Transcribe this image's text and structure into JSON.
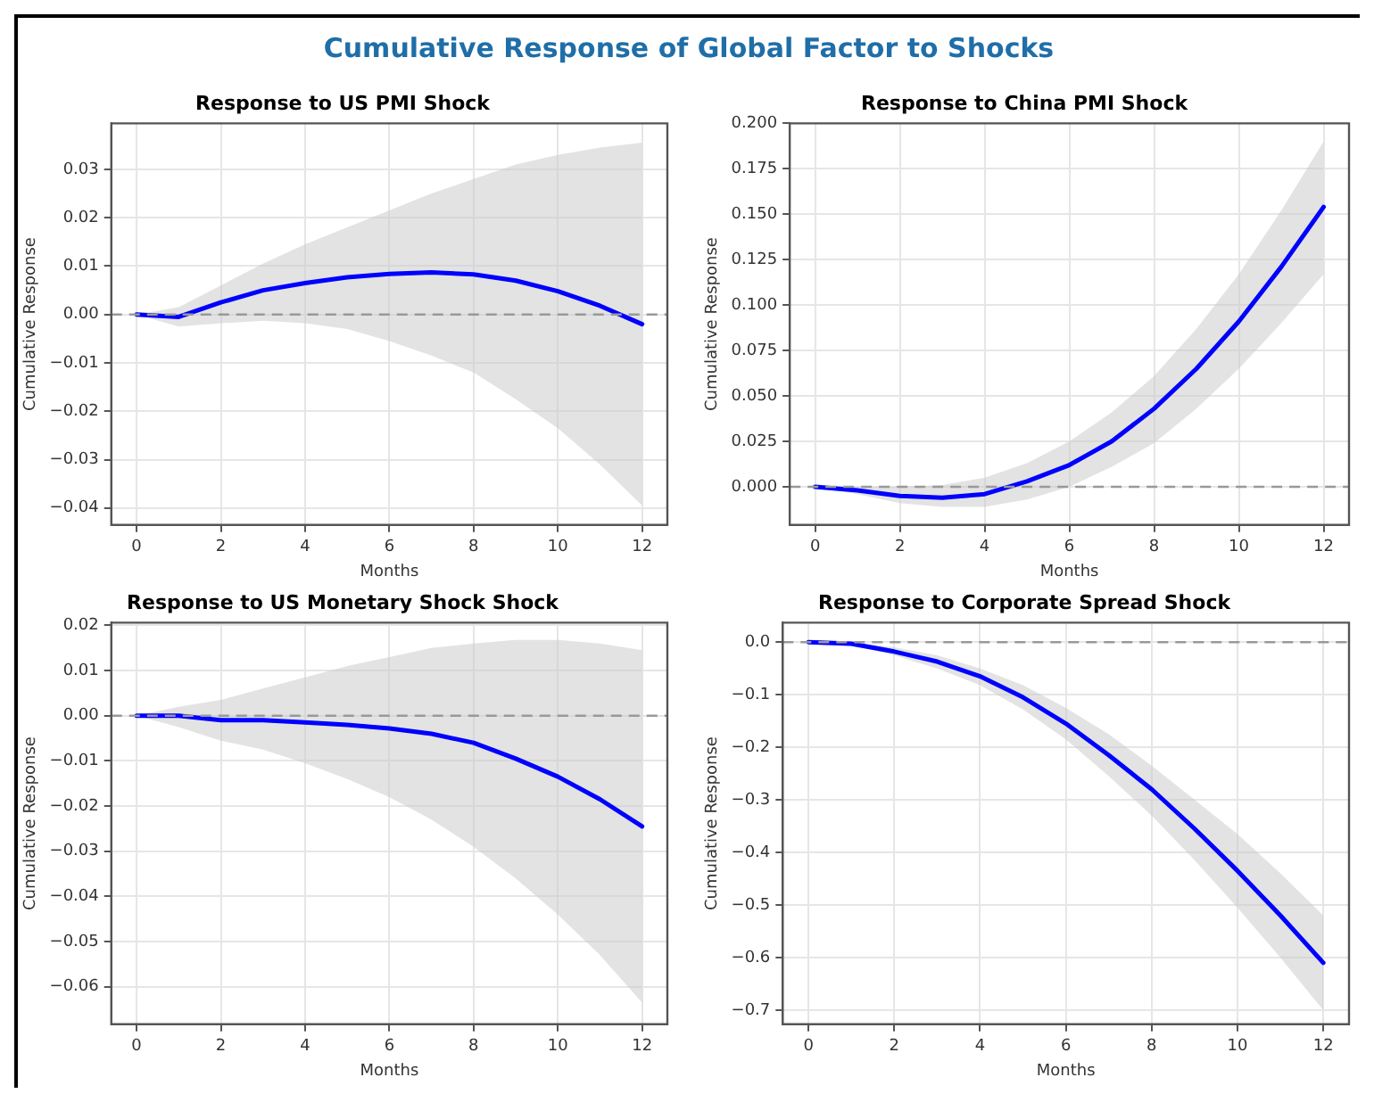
{
  "chart_data": [
    {
      "type": "line",
      "title": "Response to US PMI Shock",
      "annotations": [
        "Cumulative Response of Global Factor to Shocks"
      ],
      "xlabel": "Months",
      "ylabel": "Cumulative Response",
      "x": [
        0,
        1,
        2,
        3,
        4,
        5,
        6,
        7,
        8,
        9,
        10,
        11,
        12
      ],
      "series": [
        {
          "color": "#0000ff",
          "values": [
            0,
            -0.0005,
            0.0025,
            0.005,
            0.0065,
            0.0077,
            0.0084,
            0.0087,
            0.0083,
            0.007,
            0.0048,
            0.0018,
            -0.002
          ],
          "lower": [
            0,
            -0.0025,
            -0.0018,
            -0.0013,
            -0.0018,
            -0.003,
            -0.0055,
            -0.0085,
            -0.012,
            -0.0175,
            -0.0235,
            -0.031,
            -0.0395
          ],
          "upper": [
            0,
            0.0015,
            0.006,
            0.0105,
            0.0145,
            0.018,
            0.0215,
            0.025,
            0.028,
            0.031,
            0.033,
            0.0345,
            0.0355
          ]
        }
      ],
      "ref_lines": [
        {
          "axis": "y",
          "value": 0,
          "color": "#999999",
          "line_style": "dashed"
        }
      ],
      "xlim": [
        -0.6,
        12.6
      ],
      "xticks": [
        0,
        2,
        4,
        6,
        8,
        10,
        12
      ],
      "ylim": [
        -0.0435,
        0.0395
      ],
      "yticks": [
        {
          "value": -0.04,
          "label": "−0.04"
        },
        {
          "value": -0.03,
          "label": "−0.03"
        },
        {
          "value": -0.02,
          "label": "−0.02"
        },
        {
          "value": -0.01,
          "label": "−0.01"
        },
        {
          "value": 0,
          "label": "0.00"
        },
        {
          "value": 0.01,
          "label": "0.01"
        },
        {
          "value": 0.02,
          "label": "0.02"
        },
        {
          "value": 0.03,
          "label": "0.03"
        }
      ],
      "grid": true,
      "legend": false,
      "marker": "none",
      "line_style": "solid"
    },
    {
      "type": "line",
      "title": "Response to China PMI Shock",
      "xlabel": "Months",
      "ylabel": "Cumulative Response",
      "x": [
        0,
        1,
        2,
        3,
        4,
        5,
        6,
        7,
        8,
        9,
        10,
        11,
        12
      ],
      "series": [
        {
          "color": "#0000ff",
          "values": [
            0,
            -0.002,
            -0.005,
            -0.006,
            -0.004,
            0.003,
            0.012,
            0.025,
            0.043,
            0.065,
            0.091,
            0.121,
            0.154
          ],
          "lower": [
            0,
            -0.004,
            -0.009,
            -0.011,
            -0.011,
            -0.007,
            0,
            0.011,
            0.024,
            0.043,
            0.065,
            0.09,
            0.117
          ],
          "upper": [
            0,
            0,
            0,
            0.001,
            0.005,
            0.013,
            0.025,
            0.041,
            0.061,
            0.087,
            0.117,
            0.152,
            0.19
          ]
        }
      ],
      "ref_lines": [
        {
          "axis": "y",
          "value": 0,
          "color": "#999999",
          "line_style": "dashed"
        }
      ],
      "xlim": [
        -0.6,
        12.6
      ],
      "xticks": [
        0,
        2,
        4,
        6,
        8,
        10,
        12
      ],
      "ylim": [
        -0.021,
        0.2
      ],
      "yticks": [
        {
          "value": 0,
          "label": "0.000"
        },
        {
          "value": 0.025,
          "label": "0.025"
        },
        {
          "value": 0.05,
          "label": "0.050"
        },
        {
          "value": 0.075,
          "label": "0.075"
        },
        {
          "value": 0.1,
          "label": "0.100"
        },
        {
          "value": 0.125,
          "label": "0.125"
        },
        {
          "value": 0.15,
          "label": "0.150"
        },
        {
          "value": 0.175,
          "label": "0.175"
        },
        {
          "value": 0.2,
          "label": "0.200"
        }
      ],
      "grid": true,
      "legend": false,
      "marker": "none",
      "line_style": "solid"
    },
    {
      "type": "line",
      "title": "Response to US Monetary Shock Shock",
      "xlabel": "Months",
      "ylabel": "Cumulative Response",
      "x": [
        0,
        1,
        2,
        3,
        4,
        5,
        6,
        7,
        8,
        9,
        10,
        11,
        12
      ],
      "series": [
        {
          "color": "#0000ff",
          "values": [
            0,
            0,
            -0.001,
            -0.001,
            -0.0015,
            -0.002,
            -0.0028,
            -0.004,
            -0.006,
            -0.0095,
            -0.0135,
            -0.0185,
            -0.0245
          ],
          "lower": [
            0,
            -0.0025,
            -0.0055,
            -0.0075,
            -0.0105,
            -0.014,
            -0.018,
            -0.023,
            -0.029,
            -0.036,
            -0.044,
            -0.053,
            -0.0635
          ],
          "upper": [
            0,
            0.002,
            0.0035,
            0.006,
            0.0085,
            0.011,
            0.013,
            0.015,
            0.016,
            0.0168,
            0.0168,
            0.016,
            0.0145
          ]
        }
      ],
      "ref_lines": [
        {
          "axis": "y",
          "value": 0,
          "color": "#999999",
          "line_style": "dashed"
        }
      ],
      "xlim": [
        -0.6,
        12.6
      ],
      "xticks": [
        0,
        2,
        4,
        6,
        8,
        10,
        12
      ],
      "ylim": [
        -0.0683,
        0.0206
      ],
      "yticks": [
        {
          "value": -0.06,
          "label": "−0.06"
        },
        {
          "value": -0.05,
          "label": "−0.05"
        },
        {
          "value": -0.04,
          "label": "−0.04"
        },
        {
          "value": -0.03,
          "label": "−0.03"
        },
        {
          "value": -0.02,
          "label": "−0.02"
        },
        {
          "value": -0.01,
          "label": "−0.01"
        },
        {
          "value": 0,
          "label": "0.00"
        },
        {
          "value": 0.01,
          "label": "0.01"
        },
        {
          "value": 0.02,
          "label": "0.02"
        }
      ],
      "grid": true,
      "legend": false,
      "marker": "none",
      "line_style": "solid"
    },
    {
      "type": "line",
      "title": "Response to Corporate Spread Shock",
      "xlabel": "Months",
      "ylabel": "Cumulative Response",
      "x": [
        0,
        1,
        2,
        3,
        4,
        5,
        6,
        7,
        8,
        9,
        10,
        11,
        12
      ],
      "series": [
        {
          "color": "#0000ff",
          "values": [
            0,
            -0.003,
            -0.018,
            -0.037,
            -0.065,
            -0.105,
            -0.155,
            -0.215,
            -0.28,
            -0.355,
            -0.435,
            -0.52,
            -0.61
          ],
          "lower": [
            0,
            -0.006,
            -0.025,
            -0.05,
            -0.082,
            -0.128,
            -0.185,
            -0.255,
            -0.33,
            -0.415,
            -0.505,
            -0.6,
            -0.7
          ],
          "upper": [
            0,
            -0.001,
            -0.01,
            -0.025,
            -0.05,
            -0.082,
            -0.125,
            -0.175,
            -0.235,
            -0.3,
            -0.365,
            -0.44,
            -0.52
          ]
        }
      ],
      "ref_lines": [
        {
          "axis": "y",
          "value": 0,
          "color": "#999999",
          "line_style": "dashed"
        }
      ],
      "xlim": [
        -0.6,
        12.6
      ],
      "xticks": [
        0,
        2,
        4,
        6,
        8,
        10,
        12
      ],
      "ylim": [
        -0.727,
        0.037
      ],
      "yticks": [
        {
          "value": -0.7,
          "label": "−0.7"
        },
        {
          "value": -0.6,
          "label": "−0.6"
        },
        {
          "value": -0.5,
          "label": "−0.5"
        },
        {
          "value": -0.4,
          "label": "−0.4"
        },
        {
          "value": -0.3,
          "label": "−0.3"
        },
        {
          "value": -0.2,
          "label": "−0.2"
        },
        {
          "value": -0.1,
          "label": "−0.1"
        },
        {
          "value": 0,
          "label": "0.0"
        }
      ],
      "grid": true,
      "legend": false,
      "marker": "none",
      "line_style": "solid"
    }
  ]
}
